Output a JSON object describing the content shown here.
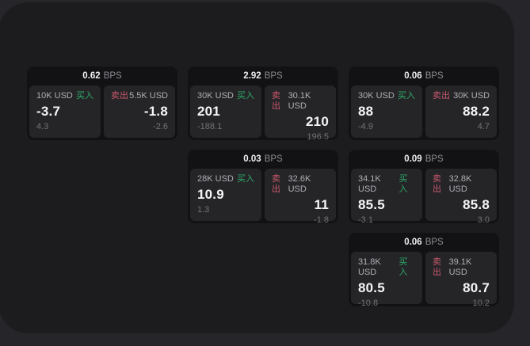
{
  "labels": {
    "buy": "买入",
    "sell": "卖出",
    "bps_unit": "BPS"
  },
  "colors": {
    "outer_background": "#26262a",
    "window_background": "#1c1c1e",
    "card_background": "#121214",
    "panel_background": "#252528",
    "buy_accent": "#2fa968",
    "sell_accent": "#c9596b"
  },
  "cards": [
    {
      "bps": "0.62",
      "buy": {
        "size": "10K USD",
        "price": "-3.7",
        "delta": "4.3"
      },
      "sell": {
        "size": "5.5K USD",
        "price": "-1.8",
        "delta": "-2.6"
      }
    },
    {
      "bps": "2.92",
      "buy": {
        "size": "30K USD",
        "price": "201",
        "delta": "-188.1"
      },
      "sell": {
        "size": "30.1K USD",
        "price": "210",
        "delta": "196.5"
      }
    },
    {
      "bps": "0.06",
      "buy": {
        "size": "30K USD",
        "price": "88",
        "delta": "-4.9"
      },
      "sell": {
        "size": "30K USD",
        "price": "88.2",
        "delta": "4.7"
      }
    },
    {
      "bps": "0.03",
      "buy": {
        "size": "28K USD",
        "price": "10.9",
        "delta": "1.3"
      },
      "sell": {
        "size": "32.6K USD",
        "price": "11",
        "delta": "-1.8"
      }
    },
    {
      "bps": "0.09",
      "buy": {
        "size": "34.1K USD",
        "price": "85.5",
        "delta": "-3.1"
      },
      "sell": {
        "size": "32.8K USD",
        "price": "85.8",
        "delta": "3.0"
      }
    },
    {
      "bps": "0.06",
      "buy": {
        "size": "31.8K USD",
        "price": "80.5",
        "delta": "-10.8"
      },
      "sell": {
        "size": "39.1K USD",
        "price": "80.7",
        "delta": "10.2"
      }
    }
  ]
}
